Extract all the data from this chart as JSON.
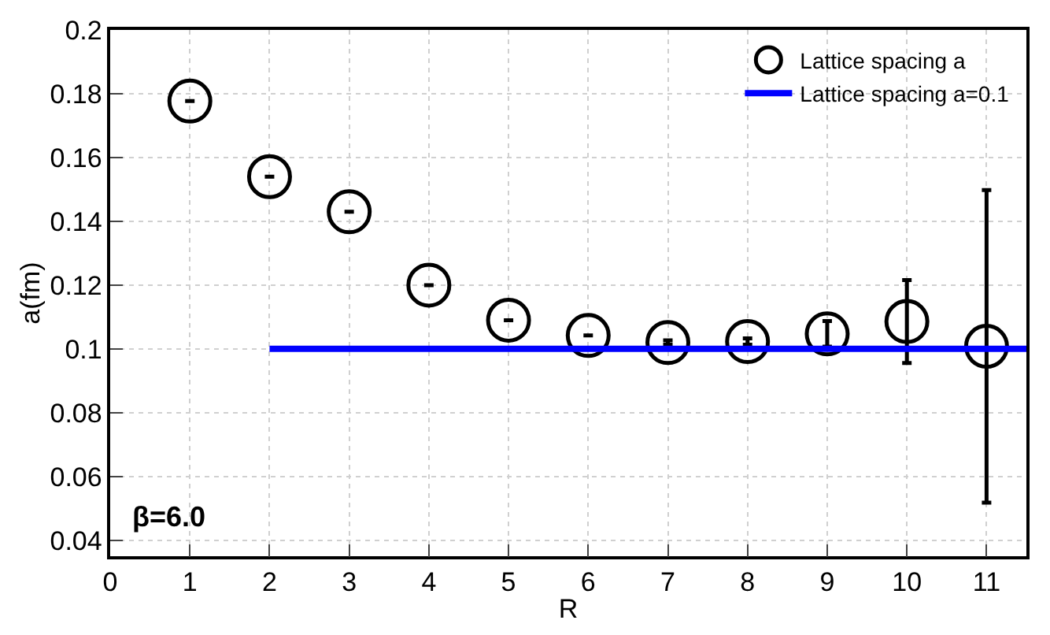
{
  "chart_data": {
    "type": "scatter",
    "xlabel": "R",
    "ylabel": "a(fm)",
    "xlim": [
      0,
      11.5
    ],
    "xticks": [
      0,
      1,
      2,
      3,
      4,
      5,
      6,
      7,
      8,
      9,
      10,
      11
    ],
    "ylim": [
      0.035,
      0.2
    ],
    "yticks": [
      0.04,
      0.06,
      0.08,
      0.1,
      0.12,
      0.14,
      0.16,
      0.18,
      0.2
    ],
    "grid": true,
    "legend": "top right",
    "marker": "circle",
    "annotations": [
      "β=6.0"
    ],
    "series": [
      {
        "name": "Lattice spacing a",
        "color": "#000000",
        "x": [
          1,
          2,
          3,
          4,
          5,
          6,
          7,
          8,
          9,
          10,
          11
        ],
        "values": [
          0.1777,
          0.154,
          0.143,
          0.12,
          0.109,
          0.1042,
          0.102,
          0.1023,
          0.1047,
          0.1086,
          0.1008
        ],
        "errors": [
          null,
          null,
          null,
          null,
          null,
          null,
          0.0007,
          0.001,
          0.004,
          0.013,
          0.049
        ]
      },
      {
        "name": "Lattice spacing a=0.1",
        "type": "line",
        "color": "#0000ff",
        "x": [
          2,
          11.5
        ],
        "values": [
          0.1,
          0.1
        ],
        "marker": "none"
      }
    ]
  }
}
